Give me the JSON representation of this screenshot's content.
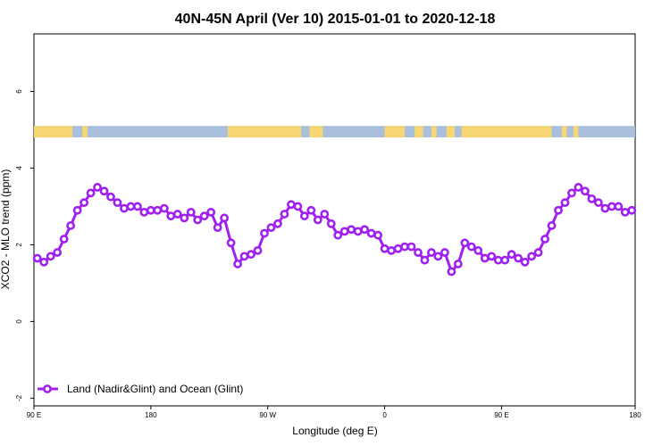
{
  "chart_data": {
    "type": "line",
    "title": "40N-45N April (Ver 10)   2015-01-01 to 2020-12-18",
    "xlabel": "Longitude (deg E)",
    "ylabel": "XCO2 - MLO trend (ppm)",
    "xlim": [
      90,
      450
    ],
    "ylim": [
      -2.2,
      7.5
    ],
    "x_ticks": [
      {
        "value": 90,
        "label": "90 E"
      },
      {
        "value": 160,
        "label": "180"
      },
      {
        "value": 230,
        "label": "90 W"
      },
      {
        "value": 300,
        "label": "0"
      },
      {
        "value": 370,
        "label": "90 E"
      },
      {
        "value": 450,
        "label": "180"
      }
    ],
    "y_ticks": [
      {
        "value": -2,
        "label": "-2"
      },
      {
        "value": 0,
        "label": "0"
      },
      {
        "value": 2,
        "label": "2"
      },
      {
        "value": 4,
        "label": "4"
      },
      {
        "value": 6,
        "label": "6"
      }
    ],
    "land_ocean_band": {
      "y_range": [
        4.8,
        5.1
      ],
      "land_color": "#f7d774",
      "ocean_color": "#a9bfdc",
      "land_segments": [
        [
          90,
          113
        ],
        [
          119,
          122
        ],
        [
          206,
          250
        ],
        [
          255,
          263
        ],
        [
          300,
          312
        ],
        [
          318,
          323
        ],
        [
          328,
          331
        ],
        [
          337,
          342
        ],
        [
          346,
          400
        ],
        [
          406,
          409
        ],
        [
          413,
          416
        ]
      ]
    },
    "series": [
      {
        "name": "Land (Nadir&Glint) and Ocean (Glint)",
        "color": "#a020f0",
        "x": [
          92,
          96,
          100,
          104,
          108,
          112,
          116,
          120,
          124,
          128,
          132,
          136,
          140,
          144,
          148,
          152,
          156,
          160,
          164,
          168,
          172,
          176,
          180,
          184,
          188,
          192,
          196,
          200,
          204,
          208,
          212,
          216,
          220,
          224,
          228,
          232,
          236,
          240,
          244,
          248,
          252,
          256,
          260,
          264,
          268,
          272,
          276,
          280,
          284,
          288,
          292,
          296,
          300,
          304,
          308,
          312,
          316,
          320,
          324,
          328,
          332,
          336,
          340,
          344,
          348,
          352,
          356,
          360,
          364,
          368,
          372,
          376,
          380,
          384,
          388,
          392,
          396,
          400,
          404,
          408,
          412,
          416,
          420,
          424,
          428,
          432,
          436,
          440,
          444,
          448
        ],
        "values": [
          1.65,
          1.55,
          1.7,
          1.8,
          2.15,
          2.5,
          2.9,
          3.1,
          3.35,
          3.5,
          3.4,
          3.25,
          3.1,
          2.95,
          3.0,
          3.0,
          2.85,
          2.9,
          2.9,
          2.95,
          2.75,
          2.8,
          2.7,
          2.85,
          2.65,
          2.75,
          2.85,
          2.45,
          2.7,
          2.05,
          1.5,
          1.7,
          1.75,
          1.85,
          2.3,
          2.45,
          2.55,
          2.8,
          3.05,
          3.0,
          2.75,
          2.9,
          2.65,
          2.8,
          2.55,
          2.25,
          2.35,
          2.4,
          2.35,
          2.4,
          2.3,
          2.25,
          1.9,
          1.85,
          1.9,
          1.95,
          1.95,
          1.8,
          1.6,
          1.8,
          1.7,
          1.8,
          1.3,
          1.5,
          2.05,
          1.95,
          1.85,
          1.65,
          1.7,
          1.6,
          1.6,
          1.75,
          1.65,
          1.55,
          1.7,
          1.8,
          2.15,
          2.5,
          2.9,
          3.1,
          3.35,
          3.5,
          3.4,
          3.2,
          3.1,
          2.95,
          3.0,
          3.0,
          2.85,
          2.9
        ]
      }
    ],
    "legend_position": "bottom-left",
    "grid": false
  }
}
